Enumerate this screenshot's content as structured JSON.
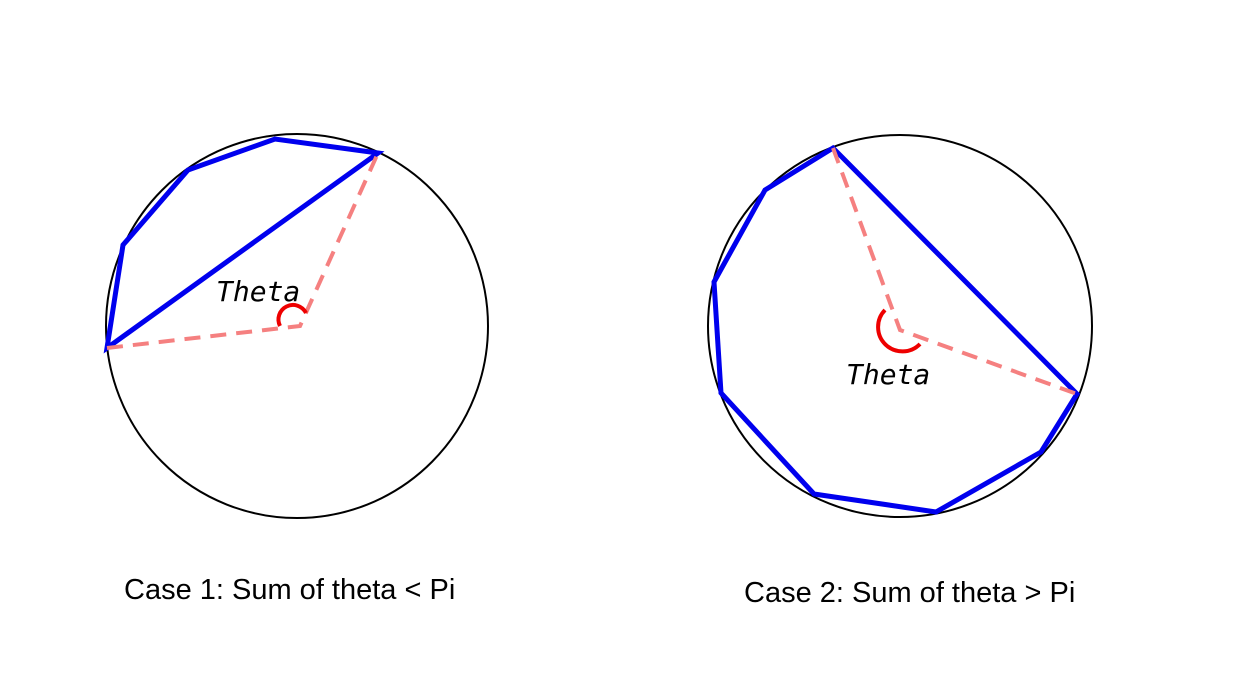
{
  "colors": {
    "circle": "#000000",
    "polygon": "#0000ee",
    "radius": "#f58080",
    "angle_arc": "#ee0000"
  },
  "panels": [
    {
      "theta_label": "Theta",
      "caption": "Case 1: Sum of theta < Pi"
    },
    {
      "theta_label": "Theta",
      "caption": "Case 2: Sum of theta > Pi"
    }
  ]
}
